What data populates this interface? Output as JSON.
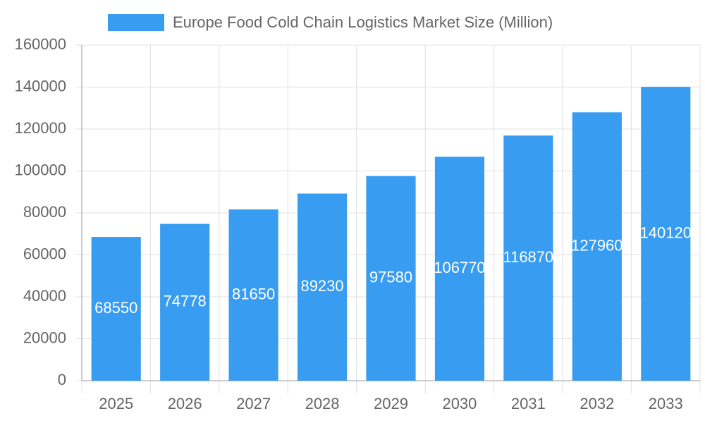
{
  "chart_data": {
    "type": "bar",
    "categories": [
      "2025",
      "2026",
      "2027",
      "2028",
      "2029",
      "2030",
      "2031",
      "2032",
      "2033"
    ],
    "series": [
      {
        "name": "Europe Food Cold Chain Logistics Market Size (Million)",
        "color": "#389cf0",
        "values": [
          68550,
          74778,
          81650,
          89230,
          97580,
          106770,
          116870,
          127960,
          140120
        ]
      }
    ],
    "ylim": [
      0,
      160000
    ],
    "yticks": [
      0,
      20000,
      40000,
      60000,
      80000,
      100000,
      120000,
      140000,
      160000
    ],
    "grid": true,
    "legend": "top"
  }
}
